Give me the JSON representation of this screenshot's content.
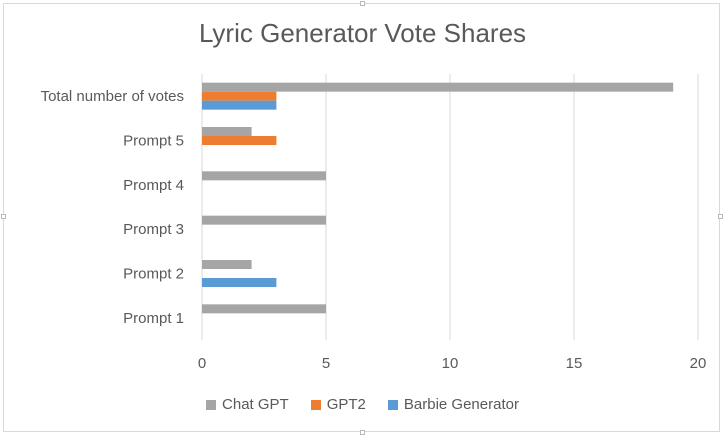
{
  "chart_data": {
    "type": "bar",
    "orientation": "horizontal",
    "title": "Lyric Generator Vote Shares",
    "xlabel": "",
    "ylabel": "",
    "categories": [
      "Prompt 1",
      "Prompt 2",
      "Prompt 3",
      "Prompt 4",
      "Prompt 5",
      "Total number of votes"
    ],
    "series": [
      {
        "name": "Chat GPT",
        "color": "#a5a5a5",
        "values": [
          5,
          2,
          5,
          5,
          2,
          19
        ]
      },
      {
        "name": "GPT2",
        "color": "#ed7d31",
        "values": [
          0,
          0,
          0,
          0,
          3,
          3
        ]
      },
      {
        "name": "Barbie Generator",
        "color": "#5b9bd5",
        "values": [
          0,
          3,
          0,
          0,
          0,
          3
        ]
      }
    ],
    "xlim": [
      0,
      20
    ],
    "xticks": [
      "0",
      "5",
      "10",
      "15",
      "20"
    ],
    "grid": true,
    "legend_position": "bottom"
  }
}
